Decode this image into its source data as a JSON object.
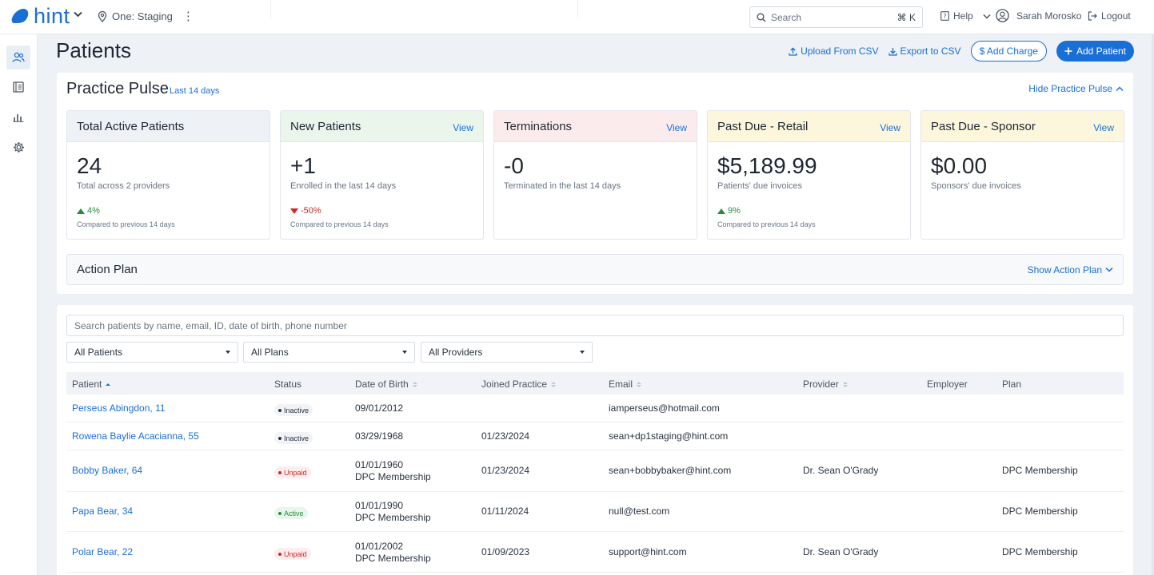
{
  "brand": {
    "name": "hint",
    "color": "#1a6fd6"
  },
  "topbar": {
    "org": "One: Staging",
    "search_placeholder": "Search",
    "search_shortcut": "⌘ K",
    "help": "Help",
    "user": "Sarah Morosko",
    "logout": "Logout"
  },
  "page": {
    "title": "Patients"
  },
  "actions": {
    "upload": "Upload From CSV",
    "export": "Export to CSV",
    "add_charge": "$ Add Charge",
    "add_patient": "Add Patient"
  },
  "pulse": {
    "title": "Practice Pulse",
    "range": "Last 14 days",
    "hide": "Hide Practice Pulse",
    "cards": [
      {
        "title": "Total Active Patients",
        "view": "",
        "value": "24",
        "caption": "Total across 2 providers",
        "delta": "4%",
        "delta_dir": "up",
        "compare": "Compared to previous 14 days",
        "head_bg": "#eef1f5"
      },
      {
        "title": "New Patients",
        "view": "View",
        "value": "+1",
        "caption": "Enrolled in the last 14 days",
        "delta": "-50%",
        "delta_dir": "down",
        "compare": "Compared to previous 14 days",
        "head_bg": "#eaf6ec"
      },
      {
        "title": "Terminations",
        "view": "View",
        "value": "-0",
        "caption": "Terminated in the last 14 days",
        "delta": "",
        "delta_dir": "",
        "compare": "",
        "head_bg": "#fcebec"
      },
      {
        "title": "Past Due - Retail",
        "view": "View",
        "value": "$5,189.99",
        "caption": "Patients' due invoices",
        "delta": "9%",
        "delta_dir": "up",
        "compare": "Compared to previous 14 days",
        "head_bg": "#fcf6dc"
      },
      {
        "title": "Past Due - Sponsor",
        "view": "View",
        "value": "$0.00",
        "caption": "Sponsors' due invoices",
        "delta": "",
        "delta_dir": "",
        "compare": "",
        "head_bg": "#fcf6dc"
      }
    ],
    "action_plan": {
      "title": "Action Plan",
      "show": "Show Action Plan"
    }
  },
  "patients": {
    "search_placeholder": "Search patients by name, email, ID, date of birth, phone number",
    "filters": [
      "All Patients",
      "All Plans",
      "All Providers"
    ],
    "columns": [
      "Patient",
      "Status",
      "Date of Birth",
      "Joined Practice",
      "Email",
      "Provider",
      "Employer",
      "Plan"
    ],
    "rows": [
      {
        "name": "Perseus Abingdon, 11",
        "status": "Inactive",
        "dob": "09/01/2012",
        "dob_plan": "",
        "joined": "",
        "email": "iamperseus@hotmail.com",
        "provider": "",
        "employer": "",
        "plan": ""
      },
      {
        "name": "Rowena Baylie Acacianna, 55",
        "status": "Inactive",
        "dob": "03/29/1968",
        "dob_plan": "",
        "joined": "01/23/2024",
        "email": "sean+dp1staging@hint.com",
        "provider": "",
        "employer": "",
        "plan": ""
      },
      {
        "name": "Bobby Baker, 64",
        "status": "Unpaid",
        "dob": "01/01/1960",
        "dob_plan": "DPC Membership",
        "joined": "01/23/2024",
        "email": "sean+bobbybaker@hint.com",
        "provider": "Dr. Sean O'Grady",
        "employer": "",
        "plan": "DPC Membership"
      },
      {
        "name": "Papa Bear, 34",
        "status": "Active",
        "dob": "01/01/1990",
        "dob_plan": "DPC Membership",
        "joined": "01/11/2024",
        "email": "null@test.com",
        "provider": "",
        "employer": "",
        "plan": "DPC Membership"
      },
      {
        "name": "Polar Bear, 22",
        "status": "Unpaid",
        "dob": "01/01/2002",
        "dob_plan": "DPC Membership",
        "joined": "01/09/2023",
        "email": "support@hint.com",
        "provider": "Dr. Sean O'Grady",
        "employer": "",
        "plan": "DPC Membership"
      }
    ]
  }
}
